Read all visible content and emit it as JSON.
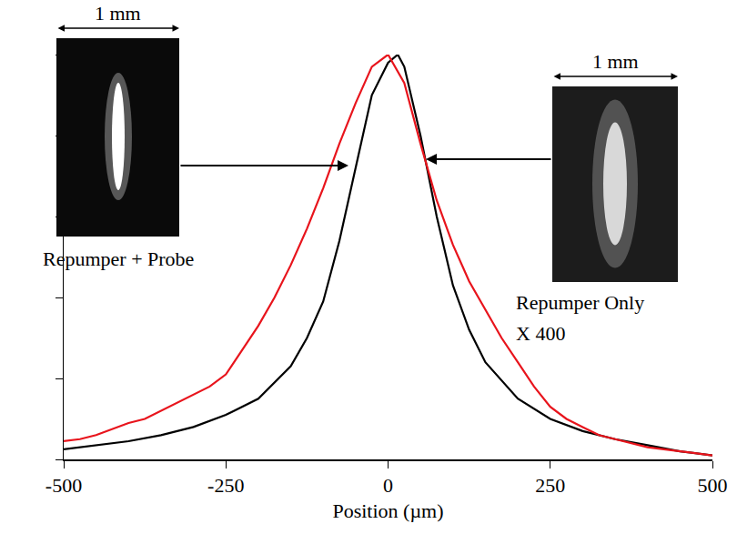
{
  "chart_data": {
    "type": "line",
    "x_title": "Position (µm)",
    "xlim": [
      -500,
      500
    ],
    "xticks": [
      -500,
      -250,
      0,
      250,
      500
    ],
    "ylim": [
      0,
      1
    ],
    "yticks": [
      0,
      0.2,
      0.4,
      0.6,
      0.8,
      1
    ],
    "tick_labels": "x",
    "grid": false,
    "series": [
      {
        "name": "Repumper + Probe",
        "color": "#000000",
        "x": [
          -500,
          -450,
          -400,
          -350,
          -300,
          -250,
          -200,
          -150,
          -125,
          -100,
          -75,
          -50,
          -25,
          0,
          15,
          25,
          50,
          75,
          100,
          125,
          150,
          200,
          250,
          300,
          350,
          400,
          450,
          500
        ],
        "values": [
          0.025,
          0.035,
          0.045,
          0.06,
          0.08,
          0.11,
          0.15,
          0.23,
          0.3,
          0.39,
          0.54,
          0.72,
          0.9,
          0.98,
          1.0,
          0.97,
          0.8,
          0.6,
          0.43,
          0.32,
          0.24,
          0.15,
          0.1,
          0.07,
          0.05,
          0.035,
          0.02,
          0.01
        ]
      },
      {
        "name": "Repumper Only",
        "color": "#e8141c",
        "x": [
          -500,
          -475,
          -450,
          -425,
          -400,
          -375,
          -350,
          -325,
          -300,
          -275,
          -250,
          -225,
          -200,
          -175,
          -150,
          -125,
          -100,
          -75,
          -50,
          -25,
          0,
          25,
          50,
          75,
          100,
          125,
          150,
          175,
          200,
          225,
          250,
          275,
          300,
          325,
          350,
          375,
          400,
          425,
          450,
          475,
          500
        ],
        "values": [
          0.045,
          0.05,
          0.06,
          0.075,
          0.09,
          0.1,
          0.12,
          0.14,
          0.16,
          0.18,
          0.21,
          0.27,
          0.33,
          0.4,
          0.48,
          0.57,
          0.67,
          0.78,
          0.88,
          0.97,
          1.0,
          0.93,
          0.78,
          0.64,
          0.53,
          0.44,
          0.37,
          0.3,
          0.24,
          0.18,
          0.13,
          0.1,
          0.08,
          0.06,
          0.05,
          0.04,
          0.03,
          0.025,
          0.02,
          0.015,
          0.01
        ]
      }
    ],
    "insets": [
      {
        "scale": "1 mm"
      },
      {
        "scale": "1 mm",
        "note": "X 400"
      }
    ]
  }
}
